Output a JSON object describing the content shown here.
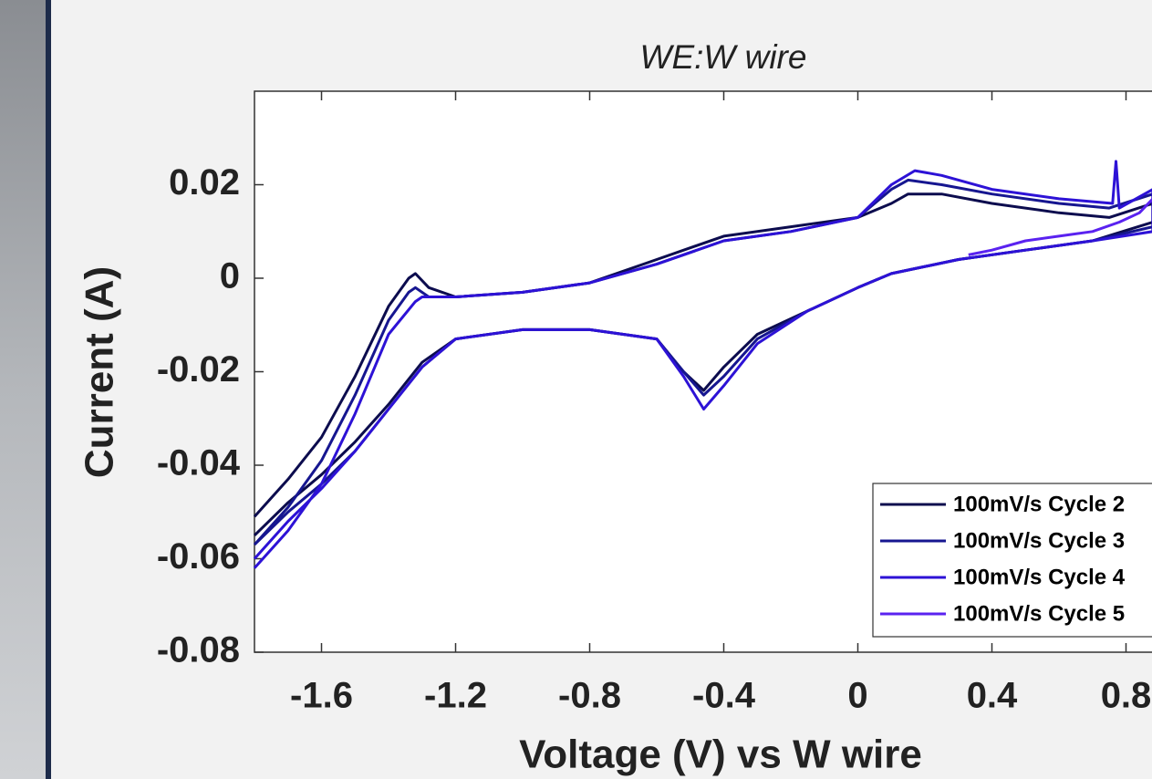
{
  "chart_data": {
    "type": "line",
    "subtitle": "WE:W wire",
    "x_label": "Voltage (V) vs W wire",
    "y_label": "Current (A)",
    "xlim": [
      -1.8,
      1.0
    ],
    "ylim": [
      -0.08,
      0.04
    ],
    "xticks": [
      -1.6,
      -1.2,
      -0.8,
      -0.4,
      0,
      0.4,
      0.8
    ],
    "yticks": [
      -0.08,
      -0.06,
      -0.04,
      -0.02,
      0,
      0.02
    ],
    "legend": "lower right",
    "series": [
      {
        "name": "100mV/s Cycle 2",
        "color": "#0c0c4e",
        "x": [
          -1.8,
          -1.7,
          -1.6,
          -1.5,
          -1.4,
          -1.34,
          -1.32,
          -1.28,
          -1.2,
          -1.0,
          -0.8,
          -0.6,
          -0.4,
          -0.2,
          0,
          0.1,
          0.15,
          0.25,
          0.4,
          0.6,
          0.75,
          0.88,
          0.88,
          0.7,
          0.5,
          0.3,
          0.1,
          0,
          -0.15,
          -0.3,
          -0.4,
          -0.46,
          -0.52,
          -0.6,
          -0.8,
          -1.0,
          -1.2,
          -1.3,
          -1.4,
          -1.5,
          -1.6,
          -1.7,
          -1.8
        ],
        "values": [
          -0.051,
          -0.043,
          -0.034,
          -0.021,
          -0.006,
          0.0,
          0.001,
          -0.002,
          -0.004,
          -0.003,
          -0.001,
          0.004,
          0.009,
          0.011,
          0.013,
          0.016,
          0.018,
          0.018,
          0.016,
          0.014,
          0.013,
          0.016,
          0.012,
          0.008,
          0.006,
          0.004,
          0.001,
          -0.002,
          -0.007,
          -0.012,
          -0.019,
          -0.024,
          -0.02,
          -0.013,
          -0.011,
          -0.011,
          -0.013,
          -0.018,
          -0.027,
          -0.035,
          -0.042,
          -0.048,
          -0.055
        ]
      },
      {
        "name": "100mV/s Cycle 3",
        "color": "#161690",
        "x": [
          -1.8,
          -1.7,
          -1.6,
          -1.5,
          -1.4,
          -1.34,
          -1.32,
          -1.28,
          -1.2,
          -1.0,
          -0.8,
          -0.6,
          -0.4,
          -0.2,
          0,
          0.1,
          0.15,
          0.25,
          0.4,
          0.6,
          0.75,
          0.88,
          0.88,
          0.7,
          0.5,
          0.3,
          0.1,
          0,
          -0.15,
          -0.3,
          -0.4,
          -0.46,
          -0.52,
          -0.6,
          -0.8,
          -1.0,
          -1.2,
          -1.3,
          -1.4,
          -1.5,
          -1.6,
          -1.7,
          -1.8
        ],
        "values": [
          -0.057,
          -0.049,
          -0.039,
          -0.025,
          -0.009,
          -0.003,
          -0.002,
          -0.004,
          -0.004,
          -0.003,
          -0.001,
          0.003,
          0.008,
          0.01,
          0.013,
          0.019,
          0.021,
          0.02,
          0.018,
          0.016,
          0.015,
          0.018,
          0.011,
          0.008,
          0.006,
          0.004,
          0.001,
          -0.002,
          -0.007,
          -0.013,
          -0.021,
          -0.025,
          -0.02,
          -0.013,
          -0.011,
          -0.011,
          -0.013,
          -0.019,
          -0.028,
          -0.037,
          -0.044,
          -0.05,
          -0.057
        ]
      },
      {
        "name": "100mV/s Cycle 4",
        "color": "#2d12d6",
        "x": [
          -1.8,
          -1.7,
          -1.6,
          -1.5,
          -1.4,
          -1.32,
          -1.3,
          -1.26,
          -1.2,
          -1.0,
          -0.8,
          -0.6,
          -0.4,
          -0.2,
          0,
          0.1,
          0.17,
          0.25,
          0.4,
          0.6,
          0.76,
          0.77,
          0.78,
          0.88,
          0.88,
          0.7,
          0.5,
          0.3,
          0.1,
          0,
          -0.15,
          -0.3,
          -0.4,
          -0.46,
          -0.52,
          -0.6,
          -0.8,
          -1.0,
          -1.2,
          -1.3,
          -1.4,
          -1.5,
          -1.6,
          -1.7,
          -1.8
        ],
        "values": [
          -0.062,
          -0.054,
          -0.044,
          -0.029,
          -0.012,
          -0.005,
          -0.004,
          -0.004,
          -0.004,
          -0.003,
          -0.001,
          0.003,
          0.008,
          0.01,
          0.013,
          0.02,
          0.023,
          0.022,
          0.019,
          0.017,
          0.016,
          0.025,
          0.015,
          0.019,
          0.01,
          0.008,
          0.006,
          0.004,
          0.001,
          -0.002,
          -0.007,
          -0.014,
          -0.023,
          -0.028,
          -0.021,
          -0.013,
          -0.011,
          -0.011,
          -0.013,
          -0.019,
          -0.028,
          -0.037,
          -0.045,
          -0.052,
          -0.06
        ]
      },
      {
        "name": "100mV/s Cycle 5",
        "color": "#5a22f0",
        "x": [
          0.33,
          0.4,
          0.5,
          0.6,
          0.7,
          0.78,
          0.84,
          0.88
        ],
        "values": [
          0.005,
          0.006,
          0.008,
          0.009,
          0.01,
          0.012,
          0.014,
          0.017
        ]
      }
    ]
  }
}
